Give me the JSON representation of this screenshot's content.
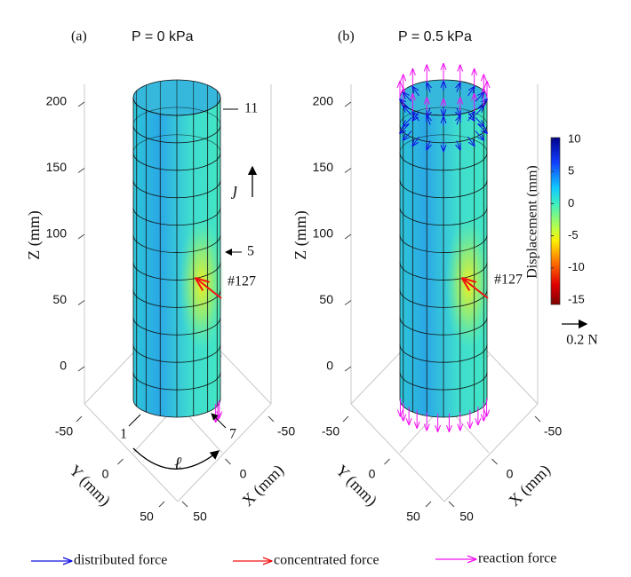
{
  "panels": [
    {
      "label": "(a)",
      "title": "P = 0 kPa",
      "z_axis_label": "Z (mm)",
      "y_axis_label": "Y (mm)",
      "x_axis_label": "X (mm)",
      "zticks": [
        0,
        50,
        100,
        150,
        200
      ],
      "yticks": [
        -50,
        0,
        50
      ],
      "xticks": [
        -50,
        0,
        50
      ],
      "annotations": [
        "11",
        "5",
        "#127",
        "ȷ",
        "1",
        "7",
        "ℓ"
      ]
    },
    {
      "label": "(b)",
      "title": "P = 0.5 kPa",
      "z_axis_label": "Z (mm)",
      "y_axis_label": "Y (mm)",
      "x_axis_label": "X (mm)",
      "zticks": [
        0,
        50,
        100,
        150,
        200
      ],
      "yticks": [
        -50,
        0,
        50
      ],
      "xticks": [
        -50,
        0,
        50
      ],
      "annotations": [
        "#127"
      ]
    }
  ],
  "colorbar": {
    "label": "Displacement (mm)",
    "ticks": [
      10,
      5,
      0,
      -5,
      -10,
      -15
    ]
  },
  "scale_arrow": "0.2 N",
  "legend": [
    "distributed force",
    "concentrated force",
    "reaction force"
  ]
}
